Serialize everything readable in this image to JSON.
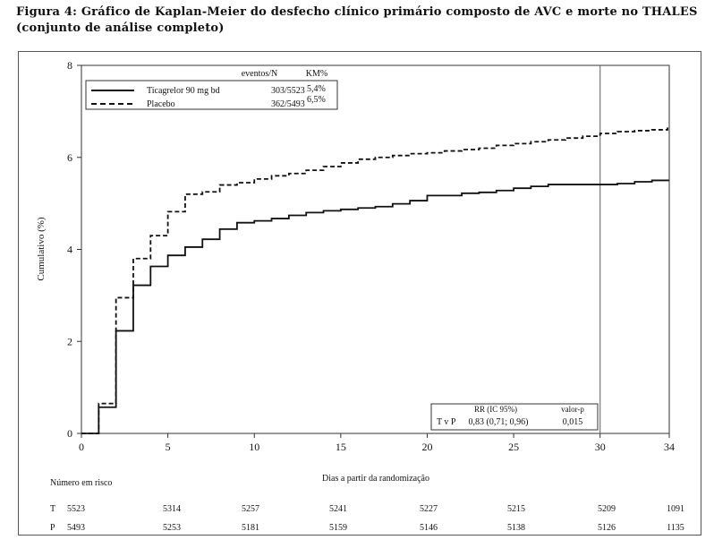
{
  "figure": {
    "title_line1": "Figura 4: Gráfico de Kaplan-Meier do desfecho clínico primário composto de AVC e morte no THALES",
    "title_line2": "(conjunto de análise completo)"
  },
  "chart_data": {
    "type": "line",
    "xlabel": "Dias a partir da randomização",
    "ylabel": "Cumulativo (%)",
    "xlim": [
      0,
      34
    ],
    "ylim": [
      0,
      8
    ],
    "x_ticks": [
      0,
      5,
      10,
      15,
      20,
      25,
      30,
      34
    ],
    "y_ticks": [
      0,
      2,
      4,
      6,
      8
    ],
    "x_tick_labels": [
      "0",
      "5",
      "10",
      "15",
      "20",
      "25",
      "30",
      "34"
    ],
    "y_tick_labels": [
      "0",
      "2",
      "4",
      "6",
      "8"
    ],
    "reference_line_x": 30,
    "grid": false,
    "legend": {
      "placement": "top-left",
      "header_events": "eventos/N",
      "header_km": "KM%",
      "entries": [
        {
          "name": "Ticagrelor 90 mg bd",
          "events": "303/5523",
          "km": "5,4%",
          "style": "solid"
        },
        {
          "name": "Placebo",
          "events": "362/5493",
          "km": "6,5%",
          "style": "dashed"
        }
      ]
    },
    "series": [
      {
        "name": "Ticagrelor 90 mg bd",
        "style": "solid",
        "steps": [
          [
            0,
            0
          ],
          [
            1,
            0.57
          ],
          [
            2,
            2.23
          ],
          [
            3,
            3.22
          ],
          [
            4,
            3.63
          ],
          [
            5,
            3.87
          ],
          [
            6,
            4.05
          ],
          [
            7,
            4.22
          ],
          [
            8,
            4.44
          ],
          [
            9,
            4.58
          ],
          [
            10,
            4.62
          ],
          [
            11,
            4.67
          ],
          [
            12,
            4.74
          ],
          [
            13,
            4.8
          ],
          [
            14,
            4.84
          ],
          [
            15,
            4.87
          ],
          [
            16,
            4.9
          ],
          [
            17,
            4.93
          ],
          [
            18,
            4.99
          ],
          [
            19,
            5.06
          ],
          [
            20,
            5.17
          ],
          [
            22,
            5.22
          ],
          [
            23,
            5.24
          ],
          [
            24,
            5.28
          ],
          [
            25,
            5.33
          ],
          [
            26,
            5.37
          ],
          [
            27,
            5.41
          ],
          [
            31,
            5.43
          ],
          [
            32,
            5.47
          ],
          [
            33,
            5.5
          ],
          [
            33.99,
            5.5
          ]
        ]
      },
      {
        "name": "Placebo",
        "style": "dashed",
        "steps": [
          [
            0,
            0
          ],
          [
            1,
            0.65
          ],
          [
            2,
            2.95
          ],
          [
            3,
            3.8
          ],
          [
            4,
            4.3
          ],
          [
            5,
            4.82
          ],
          [
            6,
            5.2
          ],
          [
            7,
            5.25
          ],
          [
            8,
            5.4
          ],
          [
            9,
            5.45
          ],
          [
            10,
            5.53
          ],
          [
            11,
            5.6
          ],
          [
            12,
            5.65
          ],
          [
            13,
            5.72
          ],
          [
            14,
            5.8
          ],
          [
            15,
            5.88
          ],
          [
            16,
            5.96
          ],
          [
            17,
            6.0
          ],
          [
            18,
            6.04
          ],
          [
            19,
            6.08
          ],
          [
            20,
            6.1
          ],
          [
            21,
            6.14
          ],
          [
            22,
            6.17
          ],
          [
            23,
            6.2
          ],
          [
            24,
            6.26
          ],
          [
            25,
            6.3
          ],
          [
            26,
            6.34
          ],
          [
            27,
            6.38
          ],
          [
            28,
            6.42
          ],
          [
            29,
            6.46
          ],
          [
            30,
            6.52
          ],
          [
            31,
            6.56
          ],
          [
            32,
            6.58
          ],
          [
            33,
            6.6
          ],
          [
            33.9,
            6.65
          ]
        ]
      }
    ],
    "stats_box": {
      "header_rr": "RR (IC 95%)",
      "header_p": "valor-p",
      "row_label": "T v P",
      "rr": "0,83 (0,71; 0,96)",
      "p": "0,015"
    },
    "risk_table": {
      "title": "Número em risco",
      "rows": [
        {
          "label": "T",
          "values": [
            "5523",
            "5314",
            "5257",
            "5241",
            "5227",
            "5215",
            "5209",
            "1091"
          ]
        },
        {
          "label": "P",
          "values": [
            "5493",
            "5253",
            "5181",
            "5159",
            "5146",
            "5138",
            "5126",
            "1135"
          ]
        }
      ]
    }
  }
}
